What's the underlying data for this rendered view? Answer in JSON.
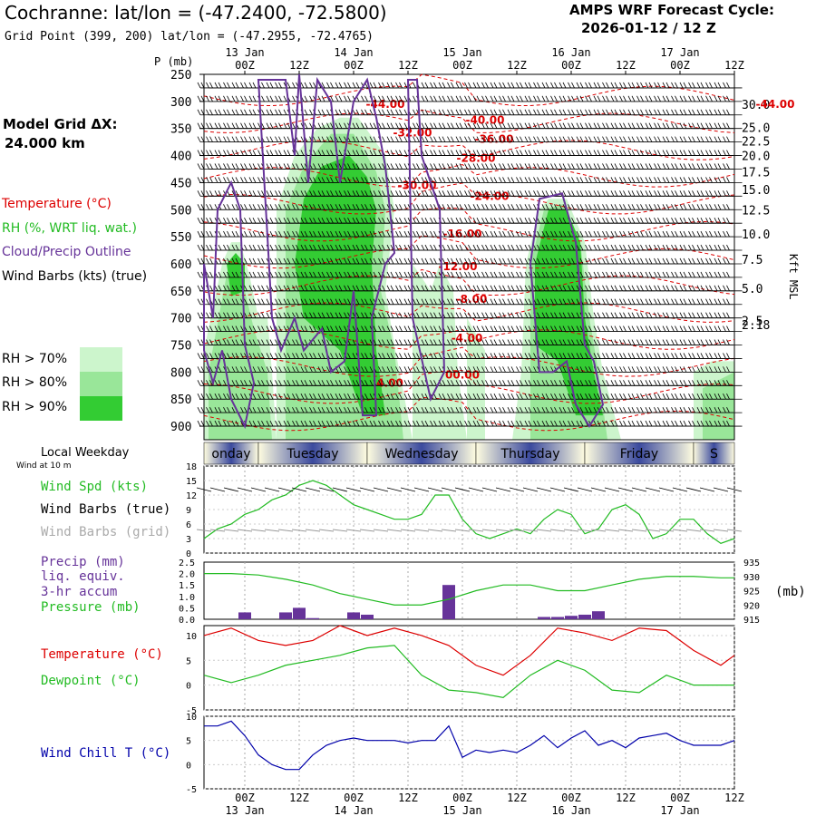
{
  "header": {
    "title": "Cochranne:  lat/lon = (-47.2400, -72.5800)",
    "grid_point": "Grid Point (399, 200) lat/lon = (-47.2955, -72.4765)",
    "cycle_label": "AMPS WRF Forecast Cycle:",
    "cycle_value": "2026-01-12 / 12  Z"
  },
  "legend": {
    "model_grid": "Model Grid ΔX:",
    "model_dx": "24.000 km",
    "temperature": "Temperature (°C)",
    "rh": "RH (%, WRT liq. wat.)",
    "cloud": "Cloud/Precip Outline",
    "wind_barbs": "Wind Barbs (kts) (true)",
    "rh70": "RH > 70%",
    "rh80": "RH > 80%",
    "rh90": "RH > 90%"
  },
  "colors": {
    "temperature": "#dd0000",
    "rh": "#22bb22",
    "cloud": "#663399",
    "rh70": "#ccf5cc",
    "rh80": "#99e699",
    "rh90": "#33cc33",
    "windchill": "#0000aa",
    "daybar": "#3b4a9e"
  },
  "chart_data": [
    {
      "type": "contour",
      "title": "Vertical cross-section",
      "ylabel_left": "P (mb)",
      "ylabel_right": "Kft MSL",
      "p_ticks": [
        250,
        300,
        350,
        400,
        450,
        500,
        550,
        600,
        650,
        700,
        750,
        800,
        850,
        900
      ],
      "kft_ticks": [
        {
          "p": 305,
          "label": "30.0"
        },
        {
          "p": 348,
          "label": "25.0"
        },
        {
          "p": 373,
          "label": "22.5"
        },
        {
          "p": 400,
          "label": "20.0"
        },
        {
          "p": 430,
          "label": "17.5"
        },
        {
          "p": 463,
          "label": "15.0"
        },
        {
          "p": 500,
          "label": "12.5"
        },
        {
          "p": 545,
          "label": "10.0"
        },
        {
          "p": 592,
          "label": "7.5"
        },
        {
          "p": 645,
          "label": "5.0"
        },
        {
          "p": 705,
          "label": "2.5"
        },
        {
          "p": 712,
          "label": "2.18"
        }
      ],
      "time_labels_top": [
        "00Z",
        "12Z",
        "00Z",
        "12Z",
        "00Z",
        "12Z",
        "00Z",
        "12Z",
        "00Z",
        "12Z"
      ],
      "date_labels": [
        "13 Jan",
        "14 Jan",
        "15 Jan",
        "16 Jan",
        "17 Jan"
      ],
      "temp_labels": [
        {
          "t": "-44.00",
          "h": 40,
          "p": 305
        },
        {
          "t": "-44.00",
          "h": 126,
          "p": 305
        },
        {
          "t": "-40.00",
          "h": 62,
          "p": 335
        },
        {
          "t": "-36.00",
          "h": 64,
          "p": 370
        },
        {
          "t": "-32.00",
          "h": 46,
          "p": 358
        },
        {
          "t": "-28.00",
          "h": 60,
          "p": 405
        },
        {
          "t": "-30.00",
          "h": 47,
          "p": 455
        },
        {
          "t": "-24.00",
          "h": 63,
          "p": 475
        },
        {
          "t": "-16.00",
          "h": 57,
          "p": 545
        },
        {
          "t": "-12.00",
          "h": 56,
          "p": 605
        },
        {
          "t": "-8.00",
          "h": 59,
          "p": 665
        },
        {
          "t": "-4.00",
          "h": 58,
          "p": 737
        },
        {
          "t": "00.00",
          "h": 57,
          "p": 805
        },
        {
          "t": "4.00",
          "h": 41,
          "p": 820
        }
      ]
    },
    {
      "type": "line",
      "title": "Wind Speed",
      "series_label": "Wind Spd (kts)",
      "barbs_true": "Wind Barbs (true)",
      "barbs_grid": "Wind Barbs (grid)",
      "ylim": [
        0,
        18
      ],
      "yticks": [
        0,
        3,
        6,
        9,
        12,
        15,
        18
      ],
      "x_hours": [
        0,
        3,
        6,
        9,
        12,
        15,
        18,
        21,
        24,
        27,
        30,
        33,
        36,
        39,
        42,
        45,
        48,
        51,
        54,
        57,
        60,
        63,
        66,
        69,
        72,
        75,
        78,
        81,
        84,
        87,
        90,
        93,
        96,
        99,
        102,
        105,
        108,
        111,
        114,
        117
      ],
      "values": [
        3,
        5,
        6,
        8,
        9,
        11,
        12,
        14,
        15,
        14,
        12,
        10,
        9,
        8,
        7,
        7,
        8,
        12,
        12,
        7,
        4,
        3,
        4,
        5,
        4,
        7,
        9,
        8,
        4,
        5,
        9,
        10,
        8,
        3,
        4,
        7,
        7,
        4,
        2,
        3
      ],
      "daylabels": [
        "onday",
        "Tuesday",
        "Wednesday",
        "Thursday",
        "Friday",
        "S"
      ],
      "top_label": "Local Weekday",
      "wind_note": "Wind at 10 m"
    },
    {
      "type": "bar+line",
      "title": "Precip / Pressure",
      "precip_label": "Precip (mm)",
      "precip_sub1": "liq. equiv.",
      "precip_sub2": "3-hr accum",
      "pressure_label": "Pressure (mb)",
      "ylim_left": [
        0,
        2.5
      ],
      "yticks_left": [
        "0.0",
        "0.5",
        "1.0",
        "1.5",
        "2.0",
        "2.5"
      ],
      "ylim_right": [
        915,
        935
      ],
      "yticks_right": [
        "915",
        "920",
        "925",
        "930",
        "935"
      ],
      "right_unit": "(mb)",
      "x_hours": [
        0,
        6,
        12,
        18,
        24,
        30,
        36,
        42,
        48,
        54,
        60,
        66,
        72,
        78,
        84,
        90,
        96,
        102,
        108,
        114,
        117
      ],
      "pressure": [
        931,
        931,
        930.5,
        929,
        927,
        924,
        922,
        920,
        920,
        922,
        925,
        927,
        927,
        925,
        925,
        927,
        929,
        930,
        930,
        929.5,
        929.5
      ],
      "precip_bars": [
        {
          "h": 9,
          "v": 0.3
        },
        {
          "h": 18,
          "v": 0.3
        },
        {
          "h": 21,
          "v": 0.5
        },
        {
          "h": 24,
          "v": 0.05
        },
        {
          "h": 33,
          "v": 0.3
        },
        {
          "h": 36,
          "v": 0.2
        },
        {
          "h": 54,
          "v": 1.5
        },
        {
          "h": 75,
          "v": 0.1
        },
        {
          "h": 78,
          "v": 0.1
        },
        {
          "h": 81,
          "v": 0.15
        },
        {
          "h": 84,
          "v": 0.2
        },
        {
          "h": 87,
          "v": 0.35
        }
      ]
    },
    {
      "type": "line",
      "title": "Temperature / Dewpoint",
      "temp_label": "Temperature (°C)",
      "dew_label": "Dewpoint (°C)",
      "ylim": [
        -5,
        12
      ],
      "yticks": [
        "-5",
        "0",
        "5",
        "10"
      ],
      "x_hours": [
        0,
        6,
        12,
        18,
        24,
        30,
        36,
        42,
        48,
        54,
        60,
        66,
        72,
        78,
        84,
        90,
        96,
        102,
        108,
        114,
        117
      ],
      "temperature": [
        10,
        11.5,
        9,
        8,
        9,
        12,
        10,
        11.5,
        10,
        8,
        4,
        2,
        6,
        11.5,
        10.5,
        9,
        11.5,
        11,
        7,
        4,
        6
      ],
      "dewpoint": [
        2,
        0.5,
        2,
        4,
        5,
        6,
        7.5,
        8,
        2,
        -1,
        -1.5,
        -2.5,
        2,
        5,
        3,
        -1,
        -1.5,
        2,
        0,
        0,
        0
      ]
    },
    {
      "type": "line",
      "title": "Wind Chill",
      "label": "Wind Chill T (°C)",
      "ylim": [
        -5,
        10
      ],
      "yticks": [
        "-5",
        "0",
        "5",
        "10"
      ],
      "x_hours": [
        0,
        3,
        6,
        9,
        12,
        15,
        18,
        21,
        24,
        27,
        30,
        33,
        36,
        39,
        42,
        45,
        48,
        51,
        54,
        57,
        60,
        63,
        66,
        69,
        72,
        75,
        78,
        81,
        84,
        87,
        90,
        93,
        96,
        99,
        102,
        105,
        108,
        111,
        114,
        117
      ],
      "values": [
        8,
        8,
        9,
        6,
        2,
        0,
        -1,
        -1,
        2,
        4,
        5,
        5.5,
        5,
        5,
        5,
        4.5,
        5,
        5,
        8,
        1.5,
        3,
        2.5,
        3,
        2.5,
        4,
        6,
        3.5,
        5.5,
        7,
        4,
        5,
        3.5,
        5.5,
        6,
        6.5,
        5,
        4,
        4,
        4,
        5
      ]
    }
  ],
  "bottom_axis": {
    "time_labels": [
      "00Z",
      "12Z",
      "00Z",
      "12Z",
      "00Z",
      "12Z",
      "00Z",
      "12Z",
      "00Z",
      "12Z"
    ],
    "date_labels": [
      "13 Jan",
      "14 Jan",
      "15 Jan",
      "16 Jan",
      "17 Jan"
    ]
  }
}
